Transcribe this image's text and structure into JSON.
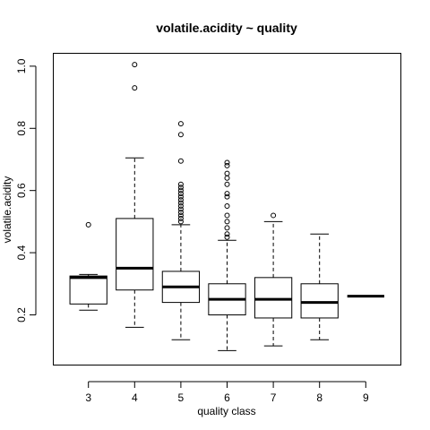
{
  "chart_data": {
    "type": "boxplot",
    "title": "volatile.acidity ~ quality",
    "xlabel": "quality class",
    "ylabel": "volatile.acidity",
    "categories": [
      "3",
      "4",
      "5",
      "6",
      "7",
      "8",
      "9"
    ],
    "ylim": [
      0.04,
      1.04
    ],
    "yticks": [
      0.2,
      0.4,
      0.6,
      0.8,
      1.0
    ],
    "ytick_labels": [
      "0.2",
      "0.4",
      "0.6",
      "0.8",
      "1.0"
    ],
    "boxes": [
      {
        "category": "3",
        "whisker_low": 0.215,
        "q1": 0.235,
        "median": 0.32,
        "q3": 0.325,
        "whisker_high": 0.33,
        "outliers": [
          0.49
        ]
      },
      {
        "category": "4",
        "whisker_low": 0.16,
        "q1": 0.28,
        "median": 0.35,
        "q3": 0.51,
        "whisker_high": 0.705,
        "outliers": [
          0.93,
          1.005
        ]
      },
      {
        "category": "5",
        "whisker_low": 0.12,
        "q1": 0.24,
        "median": 0.29,
        "q3": 0.34,
        "whisker_high": 0.49,
        "outliers": [
          0.5,
          0.51,
          0.52,
          0.53,
          0.54,
          0.55,
          0.56,
          0.57,
          0.58,
          0.59,
          0.6,
          0.61,
          0.62,
          0.695,
          0.78,
          0.815
        ]
      },
      {
        "category": "6",
        "whisker_low": 0.085,
        "q1": 0.2,
        "median": 0.25,
        "q3": 0.3,
        "whisker_high": 0.44,
        "outliers": [
          0.45,
          0.46,
          0.48,
          0.5,
          0.52,
          0.55,
          0.58,
          0.59,
          0.62,
          0.64,
          0.655,
          0.68,
          0.69
        ]
      },
      {
        "category": "7",
        "whisker_low": 0.1,
        "q1": 0.19,
        "median": 0.25,
        "q3": 0.32,
        "whisker_high": 0.5,
        "outliers": [
          0.52
        ]
      },
      {
        "category": "8",
        "whisker_low": 0.12,
        "q1": 0.19,
        "median": 0.24,
        "q3": 0.3,
        "whisker_high": 0.46,
        "outliers": []
      },
      {
        "category": "9",
        "whisker_low": 0.26,
        "q1": 0.26,
        "median": 0.26,
        "q3": 0.26,
        "whisker_high": 0.26,
        "outliers": []
      }
    ]
  }
}
